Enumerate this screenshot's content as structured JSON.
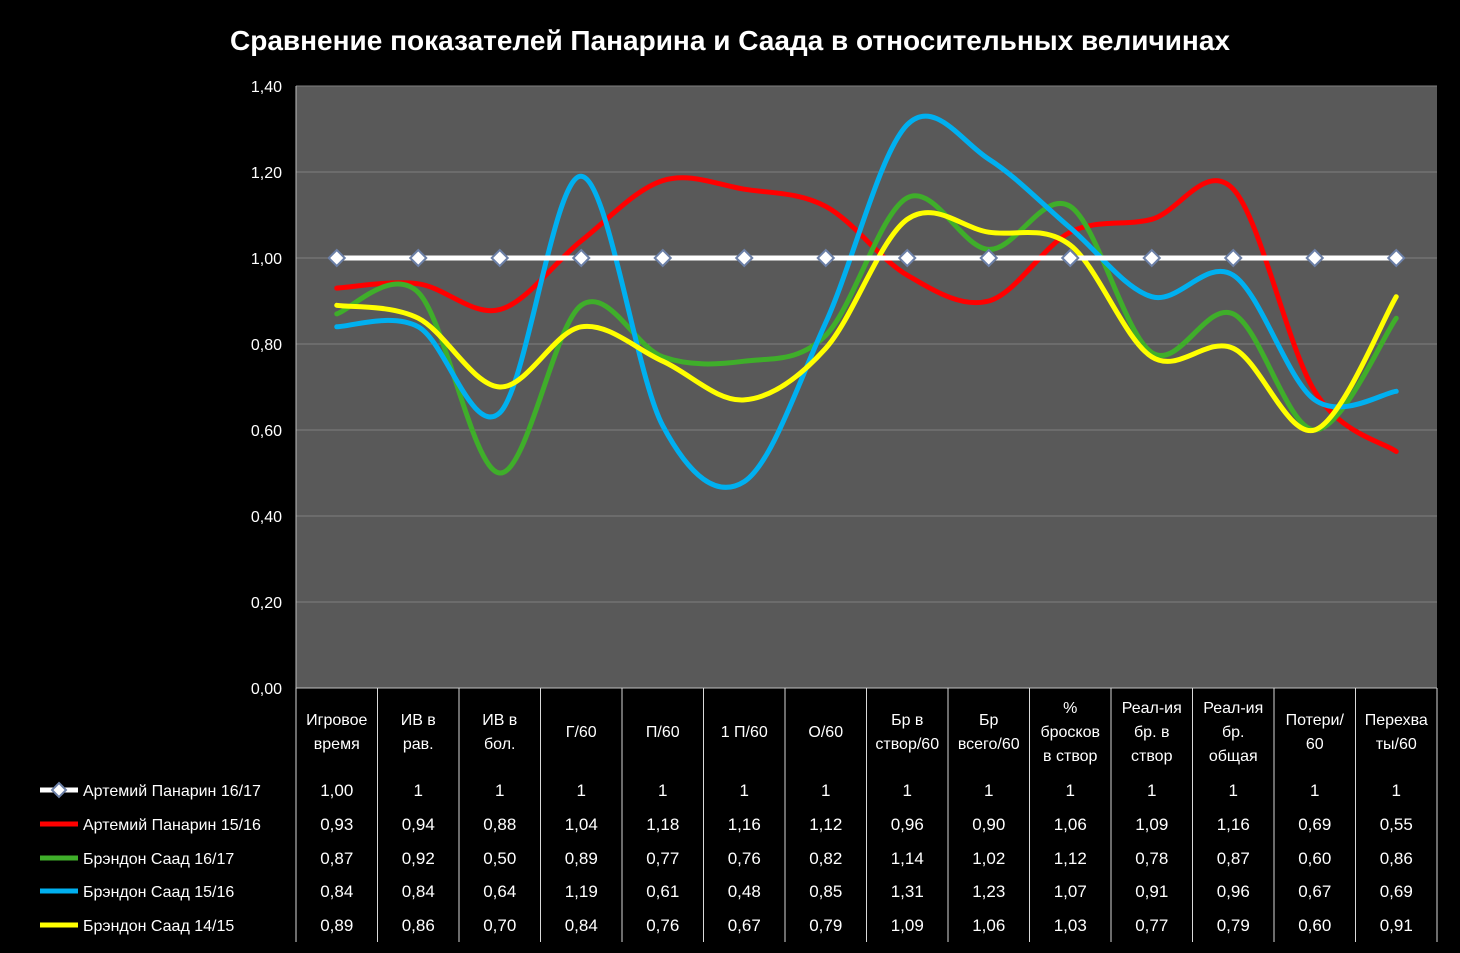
{
  "chart_data": {
    "type": "line",
    "title": "Сравнение показателей Панарина и Саада в относительных величинах",
    "xlabel": "",
    "ylabel": "",
    "ylim": [
      0,
      1.4
    ],
    "yticks": [
      "0,00",
      "0,20",
      "0,40",
      "0,60",
      "0,80",
      "1,00",
      "1,20",
      "1,40"
    ],
    "grid": true,
    "legend": "bottom-left data table",
    "categories": [
      [
        "Игровое",
        "время"
      ],
      [
        "ИВ в",
        "рав."
      ],
      [
        "ИВ в",
        "бол."
      ],
      [
        "Г/60"
      ],
      [
        "П/60"
      ],
      [
        "1 П/60"
      ],
      [
        "О/60"
      ],
      [
        "Бр в",
        "створ/60"
      ],
      [
        "Бр",
        "всего/60"
      ],
      [
        "%",
        "бросков",
        "в створ"
      ],
      [
        "Реал-ия",
        "бр. в",
        "створ"
      ],
      [
        "Реал-ия",
        "бр.",
        "общая"
      ],
      [
        "Потери/",
        "60"
      ],
      [
        "Перехва",
        "ты/60"
      ]
    ],
    "series": [
      {
        "name": "Артемий Панарин 16/17",
        "color": "#ffffff",
        "marker": "diamond",
        "values": [
          1.0,
          1,
          1,
          1,
          1,
          1,
          1,
          1,
          1,
          1,
          1,
          1,
          1,
          1
        ],
        "labels": [
          "1,00",
          "1",
          "1",
          "1",
          "1",
          "1",
          "1",
          "1",
          "1",
          "1",
          "1",
          "1",
          "1",
          "1"
        ]
      },
      {
        "name": "Артемий Панарин 15/16",
        "color": "#ff0000",
        "values": [
          0.93,
          0.94,
          0.88,
          1.04,
          1.18,
          1.16,
          1.12,
          0.96,
          0.9,
          1.06,
          1.09,
          1.16,
          0.69,
          0.55
        ],
        "labels": [
          "0,93",
          "0,94",
          "0,88",
          "1,04",
          "1,18",
          "1,16",
          "1,12",
          "0,96",
          "0,90",
          "1,06",
          "1,09",
          "1,16",
          "0,69",
          "0,55"
        ]
      },
      {
        "name": "Брэндон Саад 16/17",
        "color": "#3fae2a",
        "values": [
          0.87,
          0.92,
          0.5,
          0.89,
          0.77,
          0.76,
          0.82,
          1.14,
          1.02,
          1.12,
          0.78,
          0.87,
          0.6,
          0.86
        ],
        "labels": [
          "0,87",
          "0,92",
          "0,50",
          "0,89",
          "0,77",
          "0,76",
          "0,82",
          "1,14",
          "1,02",
          "1,12",
          "0,78",
          "0,87",
          "0,60",
          "0,86"
        ]
      },
      {
        "name": "Брэндон Саад 15/16",
        "color": "#00b0f0",
        "values": [
          0.84,
          0.84,
          0.64,
          1.19,
          0.61,
          0.48,
          0.85,
          1.31,
          1.23,
          1.07,
          0.91,
          0.96,
          0.67,
          0.69
        ],
        "labels": [
          "0,84",
          "0,84",
          "0,64",
          "1,19",
          "0,61",
          "0,48",
          "0,85",
          "1,31",
          "1,23",
          "1,07",
          "0,91",
          "0,96",
          "0,67",
          "0,69"
        ]
      },
      {
        "name": "Брэндон Саад 14/15",
        "color": "#ffff00",
        "values": [
          0.89,
          0.86,
          0.7,
          0.84,
          0.76,
          0.67,
          0.79,
          1.09,
          1.06,
          1.03,
          0.77,
          0.79,
          0.6,
          0.91
        ],
        "labels": [
          "0,89",
          "0,86",
          "0,70",
          "0,84",
          "0,76",
          "0,67",
          "0,79",
          "1,09",
          "1,06",
          "1,03",
          "0,77",
          "0,79",
          "0,60",
          "0,91"
        ]
      }
    ]
  }
}
